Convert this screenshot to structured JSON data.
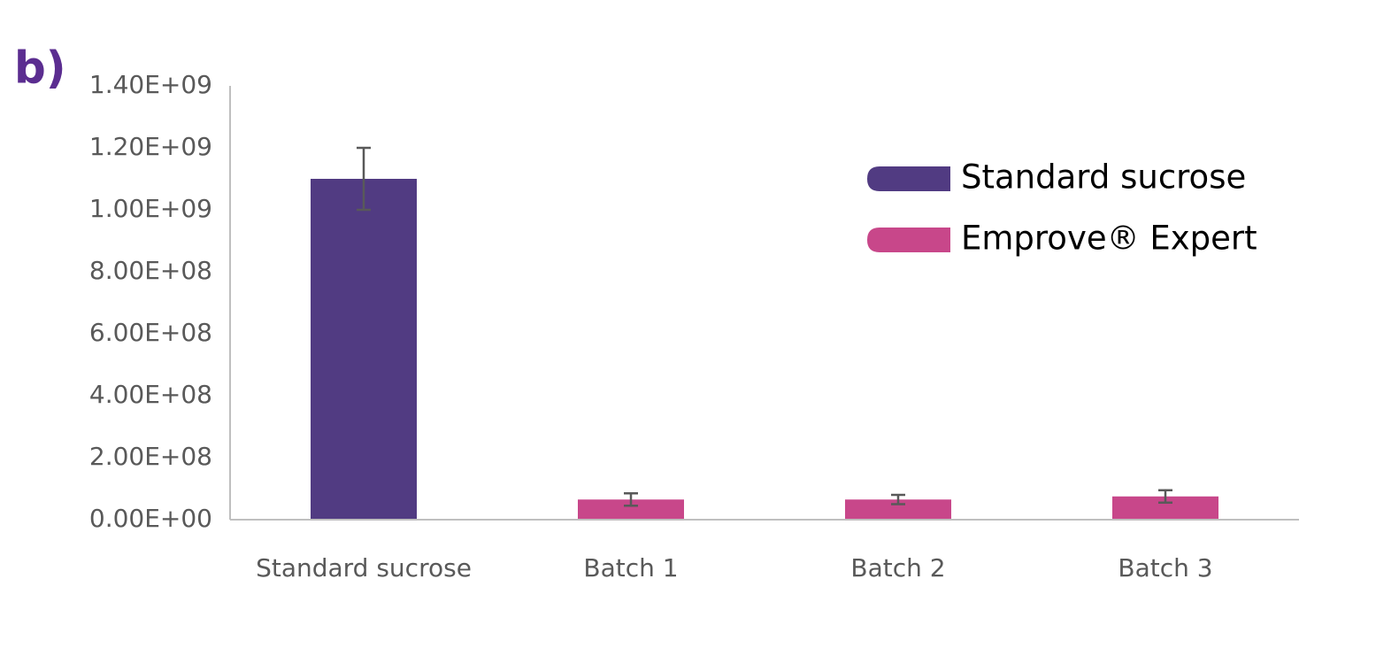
{
  "chart_data": {
    "type": "bar",
    "panel_label": "b)",
    "categories": [
      "Standard sucrose",
      "Batch 1",
      "Batch 2",
      "Batch 3"
    ],
    "series": [
      {
        "name": "Standard sucrose",
        "color": "#513b82",
        "values": [
          1100000000,
          null,
          null,
          null
        ],
        "errors": [
          100000000,
          null,
          null,
          null
        ]
      },
      {
        "name": "Emprove® Expert",
        "color": "#c8478a",
        "values": [
          null,
          65000000,
          65000000,
          75000000
        ],
        "errors": [
          null,
          20000000,
          15000000,
          20000000
        ]
      }
    ],
    "ylim": [
      0,
      1400000000
    ],
    "yticks": [
      {
        "value": 0,
        "label": "0.00E+00"
      },
      {
        "value": 200000000,
        "label": "2.00E+08"
      },
      {
        "value": 400000000,
        "label": "4.00E+08"
      },
      {
        "value": 600000000,
        "label": "6.00E+08"
      },
      {
        "value": 800000000,
        "label": "8.00E+08"
      },
      {
        "value": 1000000000,
        "label": "1.00E+09"
      },
      {
        "value": 1200000000,
        "label": "1.20E+09"
      },
      {
        "value": 1400000000,
        "label": "1.40E+09"
      }
    ],
    "grid": false,
    "legend": "upper right"
  }
}
